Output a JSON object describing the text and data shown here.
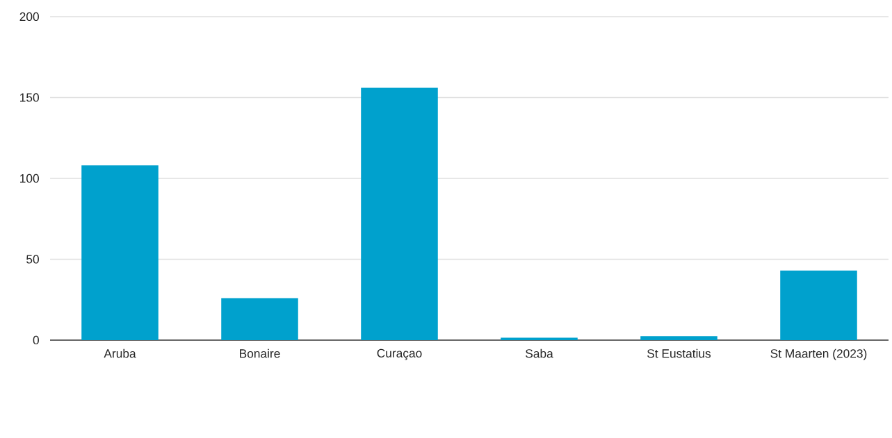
{
  "chart_data": {
    "type": "bar",
    "categories": [
      "Aruba",
      "Bonaire",
      "Curaçao",
      "Saba",
      "St Eustatius",
      "St Maarten (2023)"
    ],
    "values": [
      108,
      26,
      156,
      1.5,
      2.5,
      43
    ],
    "color": "#00a1cd",
    "ylim": [
      0,
      200
    ],
    "yticks": [
      0,
      50,
      100,
      150,
      200
    ],
    "grid": "y"
  }
}
